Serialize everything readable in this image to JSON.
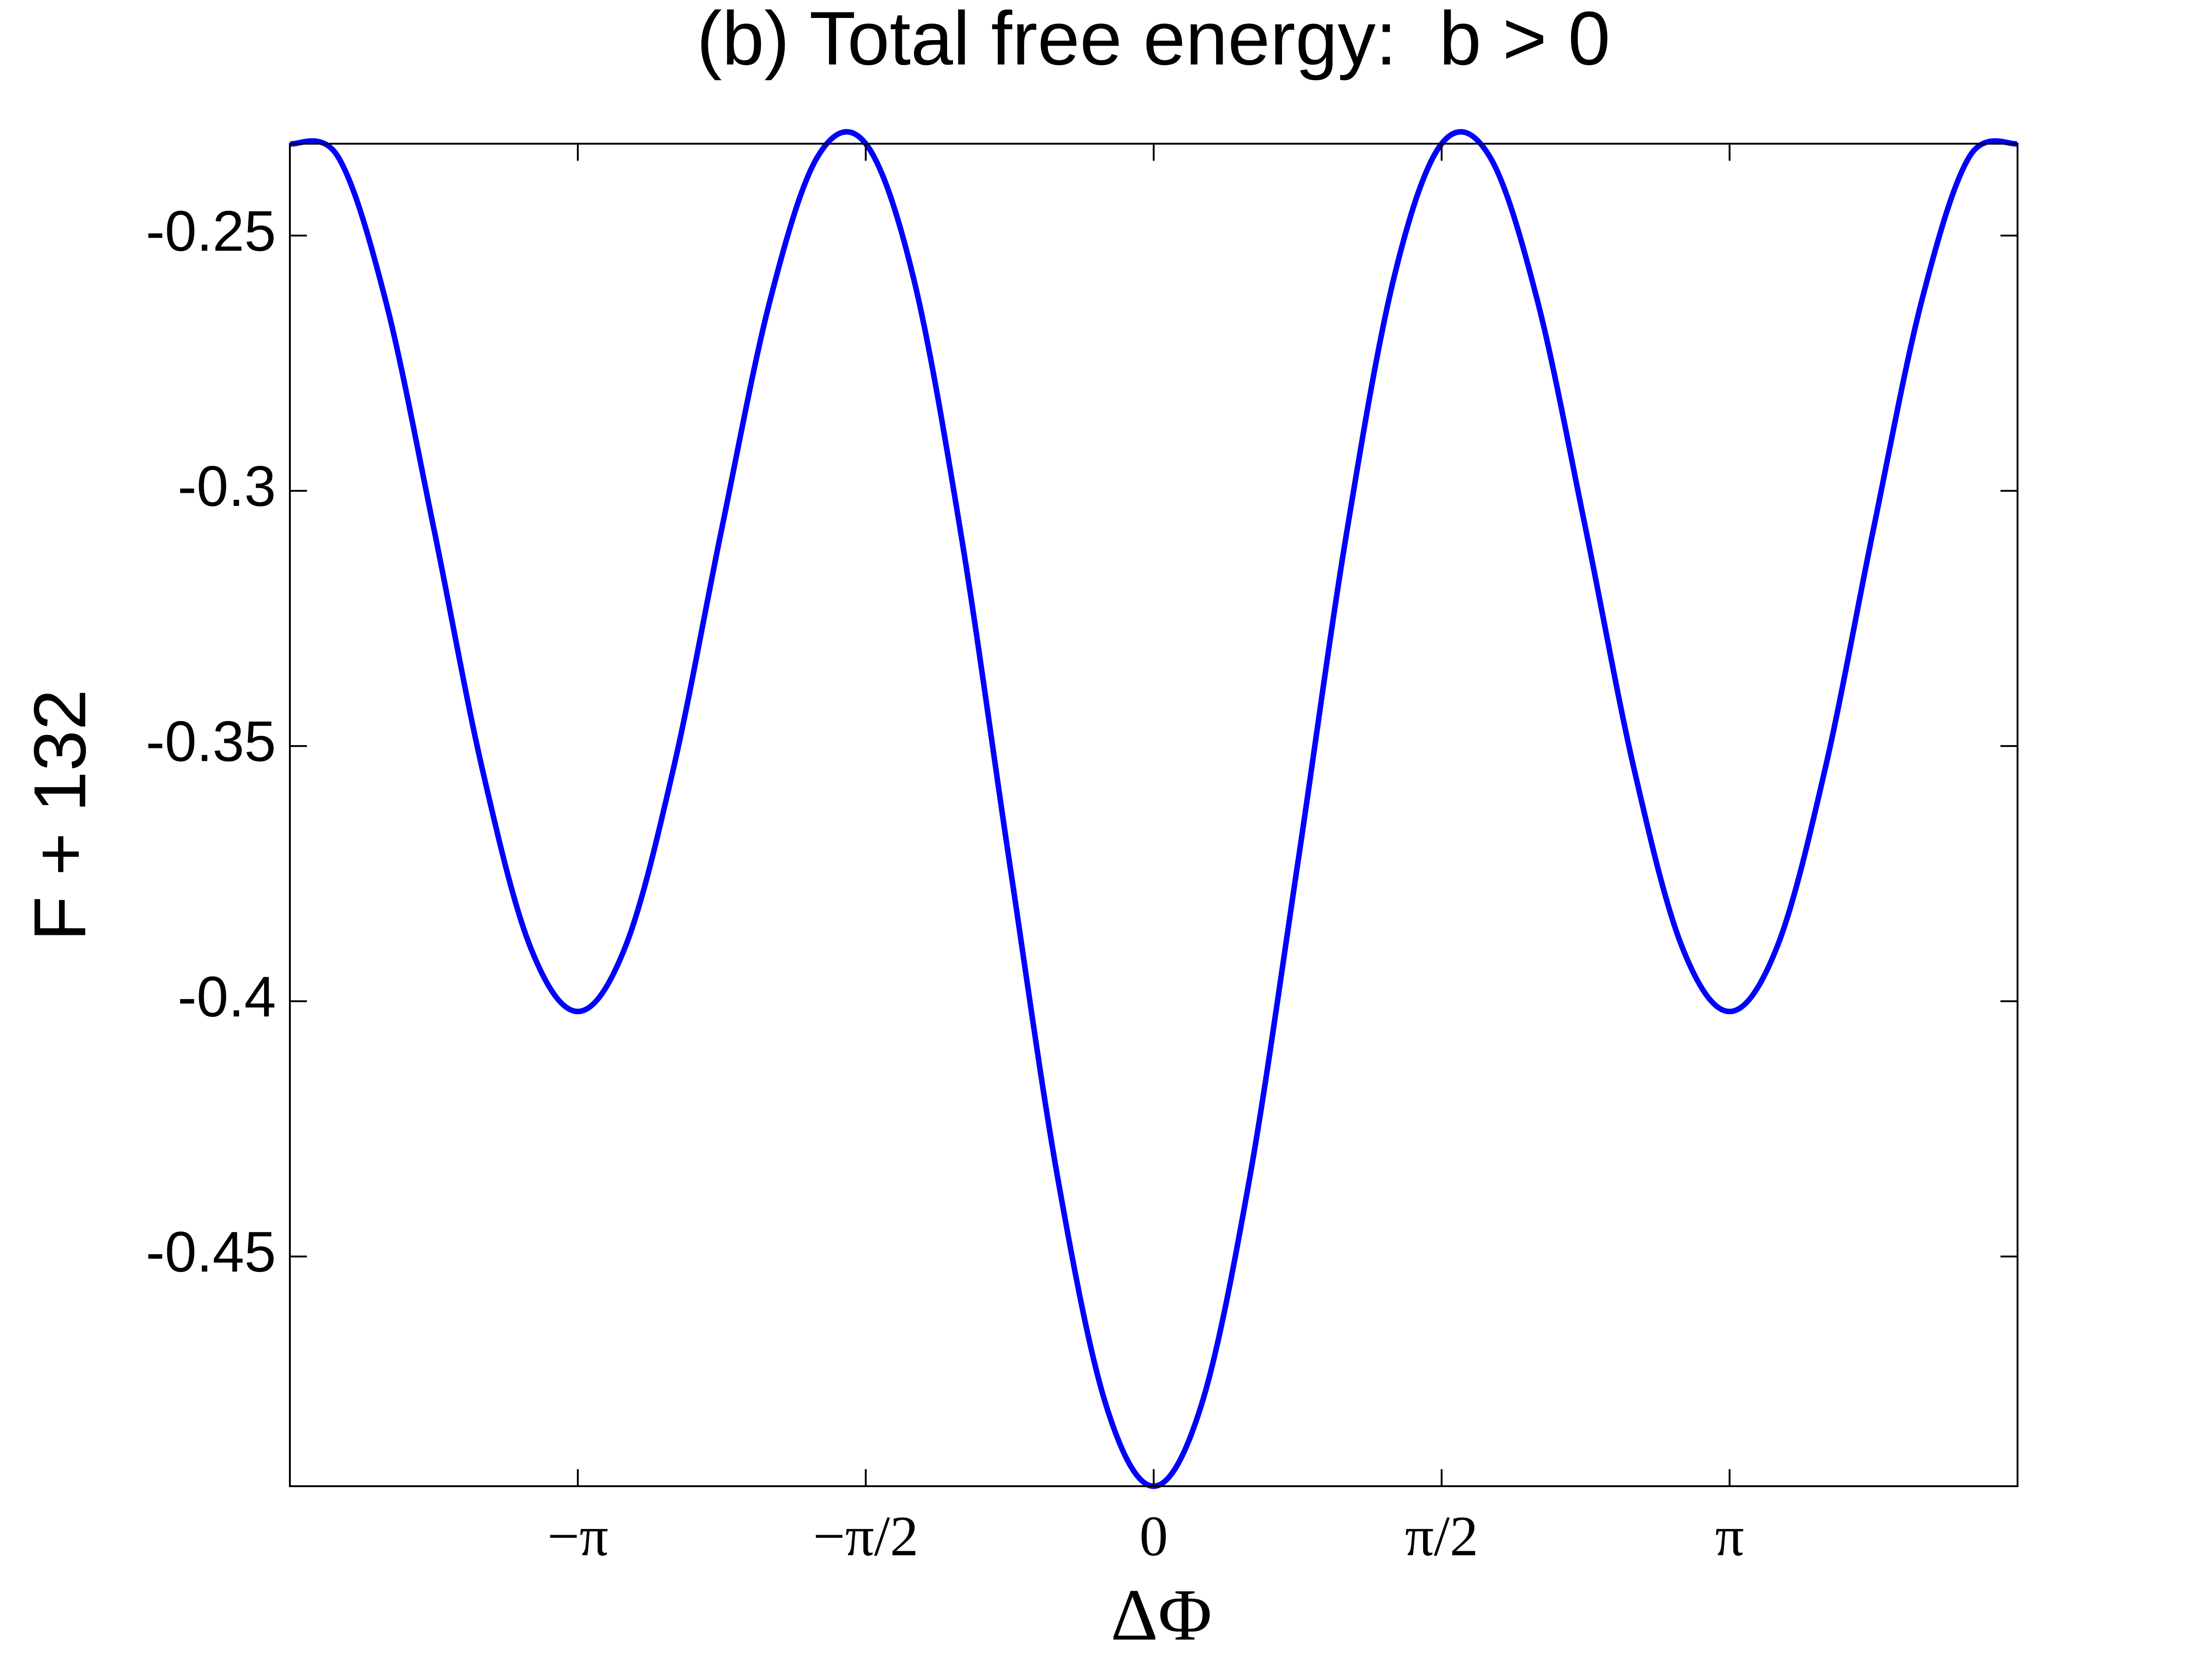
{
  "chart_data": {
    "type": "line",
    "title": "(b) Total free energy:  b > 0",
    "xlabel": "ΔΦ",
    "ylabel": "F + 132",
    "color": "#0000ff",
    "x": [
      -4.7124,
      -4.4506,
      -4.1888,
      -3.927,
      -3.6652,
      -3.4034,
      -3.1416,
      -2.8798,
      -2.618,
      -2.3562,
      -2.0944,
      -1.8326,
      -1.5708,
      -1.309,
      -1.0472,
      -0.7854,
      -0.5236,
      -0.2618,
      0,
      0.2618,
      0.5236,
      0.7854,
      1.0472,
      1.309,
      1.5708,
      1.8326,
      2.0944,
      2.3562,
      2.618,
      2.8798,
      3.1416,
      3.4034,
      3.6652,
      3.927,
      4.1888,
      4.4506,
      4.7124
    ],
    "values": [
      -0.232,
      -0.2345,
      -0.2629,
      -0.3074,
      -0.3541,
      -0.3891,
      -0.402,
      -0.3891,
      -0.3541,
      -0.3074,
      -0.2629,
      -0.2345,
      -0.232,
      -0.2585,
      -0.3094,
      -0.3731,
      -0.4346,
      -0.4789,
      -0.495,
      -0.4789,
      -0.4346,
      -0.3731,
      -0.3094,
      -0.2585,
      -0.232,
      -0.2345,
      -0.2629,
      -0.3074,
      -0.3541,
      -0.3891,
      -0.402,
      -0.3891,
      -0.3541,
      -0.3074,
      -0.2629,
      -0.2345,
      -0.232
    ],
    "xlim": [
      -4.7124,
      4.7124
    ],
    "ylim": [
      -0.495,
      -0.232
    ],
    "xticks": [
      {
        "value": -3.1416,
        "label": "−π"
      },
      {
        "value": -1.5708,
        "label": "−π/2"
      },
      {
        "value": 0,
        "label": "0"
      },
      {
        "value": 1.5708,
        "label": "π/2"
      },
      {
        "value": 3.1416,
        "label": "π"
      }
    ],
    "yticks": [
      -0.45,
      -0.4,
      -0.35,
      -0.3,
      -0.25
    ],
    "grid": false
  }
}
